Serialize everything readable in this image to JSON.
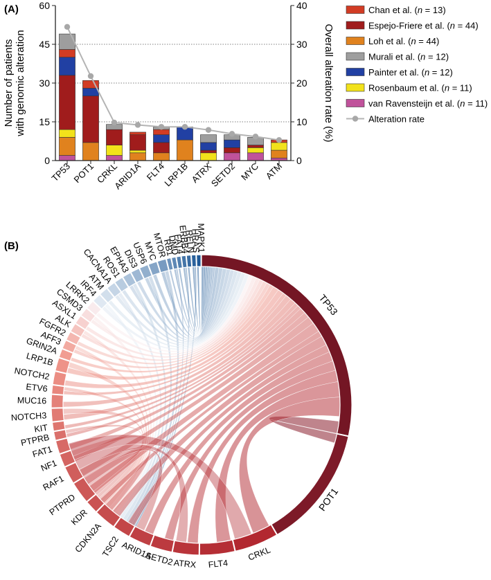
{
  "chart_data": [
    {
      "type": "bar",
      "panel_label": "(A)",
      "stacked": true,
      "categories": [
        "TP53",
        "POT1",
        "CRKL",
        "ARID1A",
        "FLT4",
        "LRP1B",
        "ATRX",
        "SETD2",
        "MYC",
        "ATM"
      ],
      "series": [
        {
          "name": "van Ravensteijn et al.",
          "n": "11",
          "color": "#c0529b",
          "values": [
            2,
            0,
            2,
            0,
            0,
            0,
            0,
            3,
            3,
            1
          ]
        },
        {
          "name": "Loh et al.",
          "n": "44",
          "color": "#e0821e",
          "values": [
            7,
            7,
            0,
            3,
            3,
            8,
            0,
            0,
            0,
            3
          ]
        },
        {
          "name": "Rosenbaum et al.",
          "n": "11",
          "color": "#f2e21b",
          "values": [
            3,
            0,
            4,
            1,
            0,
            0,
            3,
            0,
            2,
            3
          ]
        },
        {
          "name": "Espejo-Friere et al.",
          "n": "44",
          "color": "#a01c1c",
          "values": [
            21,
            18,
            6,
            6,
            4,
            0,
            1,
            2,
            1,
            0
          ]
        },
        {
          "name": "Painter et al.",
          "n": "12",
          "color": "#2140a3",
          "values": [
            7,
            3,
            0,
            0,
            3,
            5,
            3,
            3,
            0,
            0
          ]
        },
        {
          "name": "Chan et al.",
          "n": "13",
          "color": "#d23c24",
          "values": [
            3,
            3,
            0,
            1,
            2,
            0,
            0,
            0,
            0,
            1
          ]
        },
        {
          "name": "Murali et al.",
          "n": "12",
          "color": "#9e9e9e",
          "values": [
            6,
            0,
            2,
            0,
            1,
            0,
            3,
            2,
            3,
            0
          ]
        }
      ],
      "legend_order": [
        "Chan et al.",
        "Espejo-Friere et al.",
        "Loh et al.",
        "Murali et al.",
        "Painter et al.",
        "Rosenbaum et al.",
        "van Ravensteijn et al."
      ],
      "line": {
        "name": "Alteration rate",
        "color": "#b4b4b4",
        "values": [
          34.5,
          21.8,
          9.8,
          9.2,
          8.7,
          8.7,
          7.9,
          6.9,
          6.2,
          5.3
        ]
      },
      "ylabel_lines": [
        "Number of patients",
        "with genomic alteration"
      ],
      "y2label": "Overall alteration rate (%)",
      "ylim": [
        0,
        60
      ],
      "yticks": [
        0,
        15,
        30,
        45,
        60
      ],
      "y2lim": [
        0,
        40
      ],
      "y2ticks": [
        0,
        10,
        20,
        30,
        40
      ],
      "gridlines": [
        15,
        30,
        45
      ]
    },
    {
      "type": "chord",
      "panel_label": "(B)",
      "genes": [
        "TP53",
        "POT1",
        "CRKL",
        "FLT4",
        "ATRX",
        "SETD2",
        "ARID1A",
        "TSC2",
        "CDKN2A",
        "KDR",
        "PTPRD",
        "RAF1",
        "NF1",
        "FAT1",
        "PTPRB",
        "KIT",
        "NOTCH3",
        "MUC16",
        "ETV6",
        "NOTCH2",
        "LRP1B",
        "GRIN2A",
        "AFF3",
        "FGFR2",
        "ALK",
        "ASXL1",
        "CSMD3",
        "LRRK2",
        "IRF4",
        "ATM",
        "CACNA1A",
        "ROS1",
        "EPHA3",
        "DIS3",
        "USP6",
        "MYC",
        "MTOR",
        "RB1",
        "DMD",
        "FAT4",
        "ERBB4",
        "RELN",
        "HRAS",
        "MAPK1"
      ],
      "weights": [
        60,
        28,
        10,
        8,
        6,
        5,
        5,
        4,
        5,
        3,
        5,
        4,
        3,
        3,
        2,
        2,
        3,
        3,
        2,
        3,
        3,
        2,
        2,
        2,
        2,
        2,
        2,
        2,
        2,
        2,
        2,
        2,
        2,
        2,
        2,
        2,
        2,
        1,
        1,
        1,
        1,
        1,
        1,
        1
      ]
    }
  ]
}
